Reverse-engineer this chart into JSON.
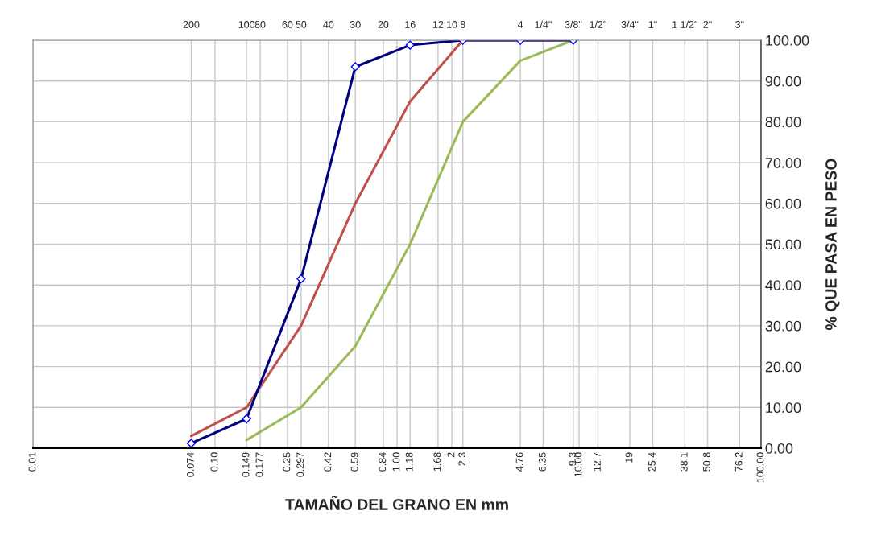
{
  "chart_data": {
    "type": "line",
    "xlabel": "TAMAÑO DEL GRANO EN mm",
    "ylabel": "% QUE PASA EN PESO",
    "log": "x",
    "grid": true,
    "legend": false,
    "line_style": "solid",
    "xlim": [
      0.01,
      100
    ],
    "ylim": [
      0,
      100
    ],
    "xticks": [
      {
        "value": 0.01,
        "label": "0.01"
      },
      0.074,
      {
        "value": 0.1,
        "label": "0.10"
      },
      0.149,
      0.177,
      0.25,
      0.297,
      0.42,
      0.59,
      0.84,
      {
        "value": 1,
        "label": "1.00"
      },
      1.18,
      1.68,
      2,
      2.3,
      4.76,
      6.35,
      9.3,
      {
        "value": 10,
        "label": "10.00"
      },
      12.7,
      19,
      25.4,
      38.1,
      50.8,
      76.2,
      {
        "value": 100,
        "label": "100.00"
      }
    ],
    "annotations": [
      "200",
      "100",
      "80",
      "60",
      "50",
      "40",
      "30",
      "20",
      "16",
      "12",
      "10",
      "8",
      "4",
      "1/4\"",
      "3/8\"",
      "1/2\"",
      "3/4\"",
      "1\"",
      "1 1/2\"",
      "2\"",
      "3\""
    ],
    "yticks": [
      {
        "value": 0,
        "label": "0.00"
      },
      {
        "value": 10,
        "label": "10.00"
      },
      {
        "value": 20,
        "label": "20.00"
      },
      {
        "value": 30,
        "label": "30.00"
      },
      {
        "value": 40,
        "label": "40.00"
      },
      {
        "value": 50,
        "label": "50.00"
      },
      {
        "value": 60,
        "label": "60.00"
      },
      {
        "value": 70,
        "label": "70.00"
      },
      {
        "value": 80,
        "label": "80.00"
      },
      {
        "value": 90,
        "label": "90.00"
      },
      {
        "value": 100,
        "label": "100.00"
      }
    ],
    "series": [
      {
        "color": "#c0504d",
        "x": [
          0.074,
          0.149,
          0.297,
          0.59,
          1.18,
          2.3,
          4.76,
          9.3
        ],
        "values": [
          3,
          10,
          30,
          60,
          85,
          100,
          100,
          100
        ],
        "marker": "none"
      },
      {
        "color": "#9bbb59",
        "x": [
          0.149,
          0.297,
          0.59,
          1.18,
          2.3,
          4.76,
          9.3
        ],
        "values": [
          2,
          10,
          25,
          50,
          80,
          95,
          100
        ],
        "marker": "none"
      },
      {
        "color": "#000080",
        "x": [
          0.074,
          0.149,
          0.297,
          0.59,
          1.18,
          2.3,
          4.76,
          9.3
        ],
        "values": [
          1.2,
          7.2,
          41.5,
          93.5,
          98.8,
          100,
          100,
          100
        ],
        "marker": "diamond"
      }
    ]
  }
}
